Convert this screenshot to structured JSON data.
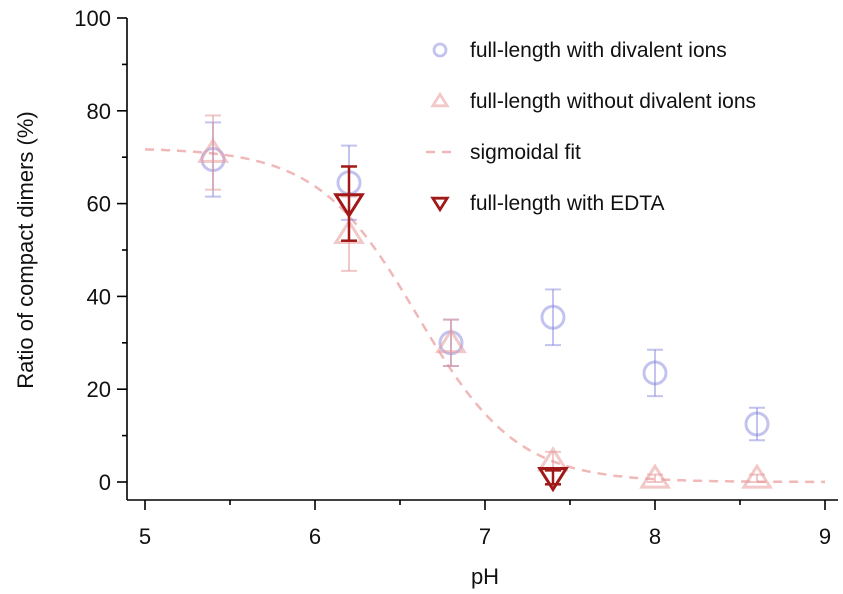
{
  "chart_data": {
    "type": "scatter",
    "title": "",
    "xlabel": "pH",
    "ylabel": "Ratio of compact dimers (%)",
    "xlim": [
      5,
      9
    ],
    "ylim": [
      0,
      100
    ],
    "x_ticks": [
      5,
      6,
      7,
      8,
      9
    ],
    "y_ticks": [
      0,
      20,
      40,
      60,
      80,
      100
    ],
    "grid": false,
    "legend_position": "top-right",
    "series": [
      {
        "name": "full-length with divalent ions",
        "marker": "circle",
        "color": "#7b7bdc",
        "points": [
          {
            "x": 5.4,
            "y": 69.5,
            "err": 8
          },
          {
            "x": 6.2,
            "y": 64.5,
            "err": 8
          },
          {
            "x": 6.8,
            "y": 30,
            "err": 5
          },
          {
            "x": 7.4,
            "y": 35.5,
            "err": 6
          },
          {
            "x": 8.0,
            "y": 23.5,
            "err": 5
          },
          {
            "x": 8.6,
            "y": 12.5,
            "err": 3.5
          }
        ]
      },
      {
        "name": "full-length without divalent ions",
        "marker": "triangle-up",
        "color": "#e79a9a",
        "points": [
          {
            "x": 5.4,
            "y": 71,
            "err": 8
          },
          {
            "x": 6.2,
            "y": 53.5,
            "err": 8
          },
          {
            "x": 6.8,
            "y": 30,
            "err": 5
          },
          {
            "x": 7.4,
            "y": 4.5,
            "err": 2
          },
          {
            "x": 8.0,
            "y": 0.8,
            "err": 0.8
          },
          {
            "x": 8.6,
            "y": 0.8,
            "err": 0.8
          }
        ]
      },
      {
        "name": "sigmoidal fit",
        "type": "line",
        "style": "dashed",
        "color": "#f0b8b8",
        "function": "sigmoid",
        "params": {
          "top": 72,
          "bottom": 0,
          "x0": 6.6,
          "slope": 3.4
        },
        "x_range": [
          5,
          9
        ]
      },
      {
        "name": "full-length with EDTA",
        "marker": "triangle-down",
        "color": "#a01818",
        "points": [
          {
            "x": 6.2,
            "y": 60,
            "err": 8
          },
          {
            "x": 7.4,
            "y": 1,
            "err": 1.5
          }
        ]
      }
    ]
  }
}
